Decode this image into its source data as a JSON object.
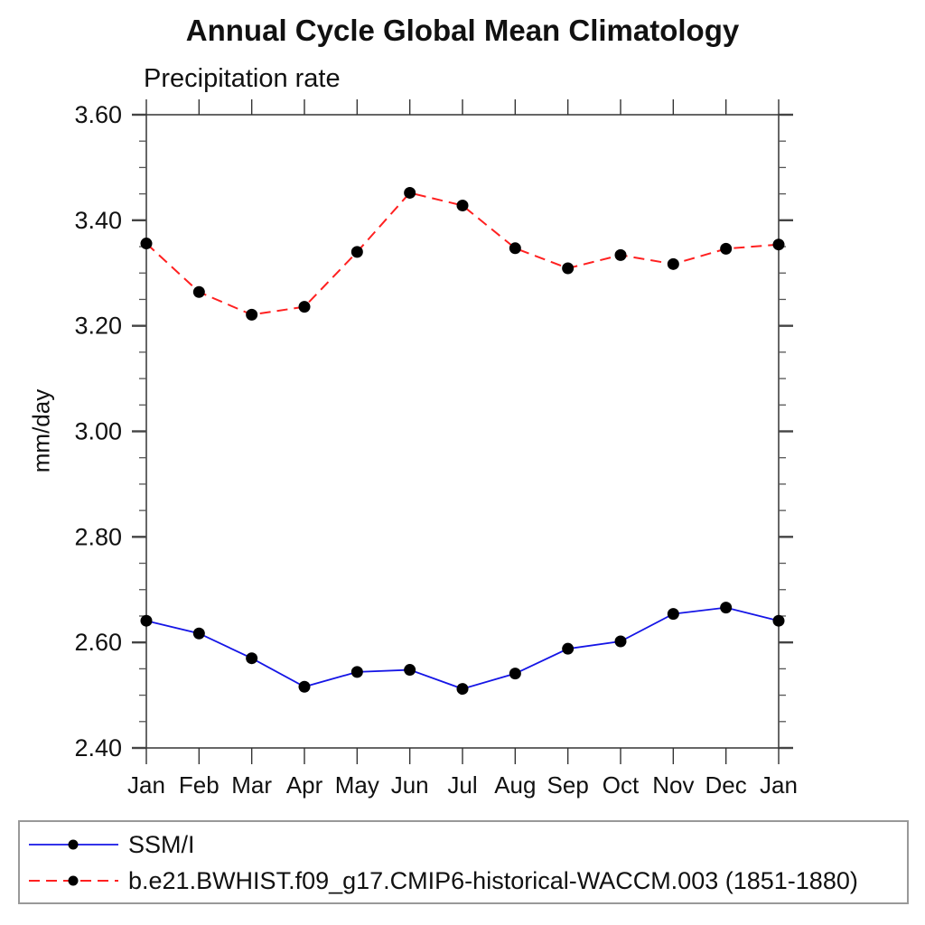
{
  "page_title": "Annual Cycle Global Mean Climatology",
  "chart_data": {
    "type": "line",
    "title": "Annual Cycle Global Mean Climatology",
    "subtitle_left": "Precipitation rate",
    "ylabel": "mm/day",
    "x_categories": [
      "Jan",
      "Feb",
      "Mar",
      "Apr",
      "May",
      "Jun",
      "Jul",
      "Aug",
      "Sep",
      "Oct",
      "Nov",
      "Dec",
      "Jan"
    ],
    "ylim": [
      2.4,
      3.6
    ],
    "ytick_major_step": 0.2,
    "ytick_minor_step": 0.05,
    "ytick_labels": [
      "2.40",
      "2.60",
      "2.80",
      "3.00",
      "3.20",
      "3.40",
      "3.60"
    ],
    "grid": false,
    "legend_position": "bottom-left-box",
    "marker": "filled-circle",
    "marker_color": "#000000",
    "series": [
      {
        "name": "SSM/I",
        "color": "#1515e6",
        "line_style": "solid",
        "values": [
          2.641,
          2.617,
          2.57,
          2.516,
          2.544,
          2.548,
          2.512,
          2.541,
          2.588,
          2.602,
          2.654,
          2.666,
          2.641
        ]
      },
      {
        "name": "b.e21.BWHIST.f09_g17.CMIP6-historical-WACCM.003 (1851-1880)",
        "color": "#ff2020",
        "line_style": "dashed",
        "values": [
          3.356,
          3.264,
          3.221,
          3.236,
          3.34,
          3.452,
          3.428,
          3.347,
          3.309,
          3.334,
          3.317,
          3.346,
          3.354
        ]
      }
    ]
  }
}
